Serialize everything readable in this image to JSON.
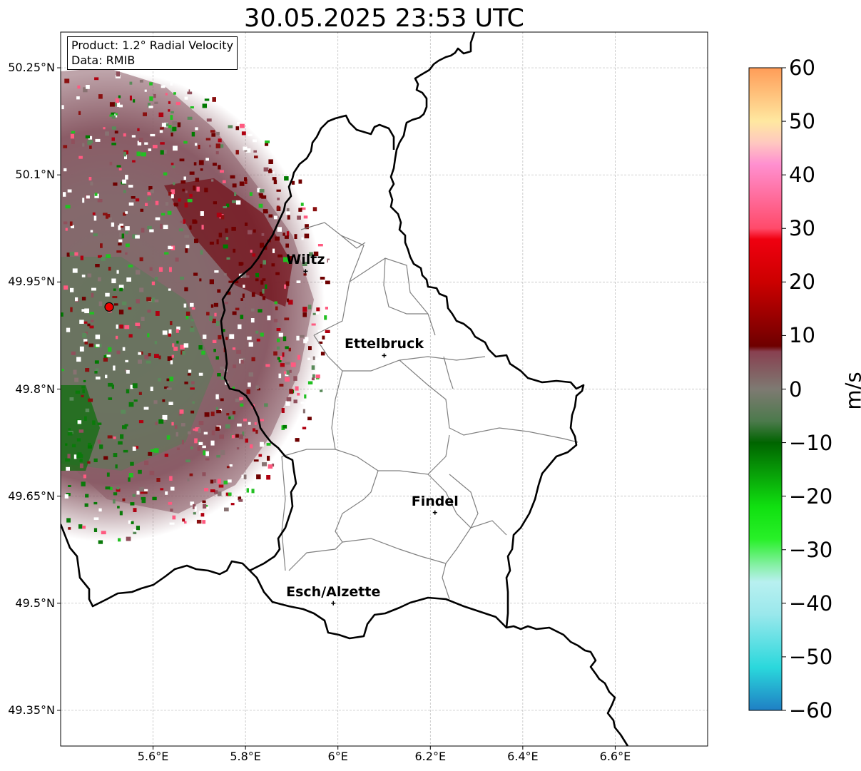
{
  "title": "30.05.2025 23:53 UTC",
  "info": {
    "product": "Product: 1.2° Radial Velocity",
    "data_source": "Data: RMIB"
  },
  "axes": {
    "lat_ticks": [
      "50.25°N",
      "50.1°N",
      "49.95°N",
      "49.8°N",
      "49.65°N",
      "49.5°N",
      "49.35°N"
    ],
    "lon_ticks": [
      "5.6°E",
      "5.8°E",
      "6°E",
      "6.2°E",
      "6.4°E",
      "6.6°E"
    ],
    "lat_range": [
      49.3,
      50.3
    ],
    "lon_range": [
      5.4,
      6.8
    ],
    "grid": true
  },
  "cities": [
    {
      "name": "Wiltz",
      "lon": 5.93,
      "lat": 49.965
    },
    {
      "name": "Ettelbruck",
      "lon": 6.1,
      "lat": 49.847
    },
    {
      "name": "Findel",
      "lon": 6.21,
      "lat": 49.627
    },
    {
      "name": "Esch/Alzette",
      "lon": 5.99,
      "lat": 49.5
    }
  ],
  "radar_site": {
    "lon": 5.505,
    "lat": 49.915
  },
  "colorbar": {
    "label": "m/s",
    "min": -60,
    "max": 60,
    "ticks": [
      "60",
      "50",
      "40",
      "30",
      "20",
      "10",
      "0",
      "−10",
      "−20",
      "−30",
      "−40",
      "−50",
      "−60"
    ],
    "stops": [
      {
        "v": -60,
        "c": "#1f7fc4"
      },
      {
        "v": -52,
        "c": "#2ad8dc"
      },
      {
        "v": -42,
        "c": "#9ae8ec"
      },
      {
        "v": -36,
        "c": "#b8f0f0"
      },
      {
        "v": -33,
        "c": "#88f0a8"
      },
      {
        "v": -28,
        "c": "#28f028"
      },
      {
        "v": -22,
        "c": "#10e010"
      },
      {
        "v": -10,
        "c": "#006400"
      },
      {
        "v": -6,
        "c": "#4c7a4c"
      },
      {
        "v": 0,
        "c": "#7e7a72"
      },
      {
        "v": 7,
        "c": "#884050"
      },
      {
        "v": 8,
        "c": "#6e0000"
      },
      {
        "v": 20,
        "c": "#cc0000"
      },
      {
        "v": 28,
        "c": "#f00010"
      },
      {
        "v": 30,
        "c": "#ff4a6a"
      },
      {
        "v": 42,
        "c": "#ff90d0"
      },
      {
        "v": 46,
        "c": "#ffc8c0"
      },
      {
        "v": 50,
        "c": "#ffe8a0"
      },
      {
        "v": 60,
        "c": "#ff9c58"
      }
    ]
  },
  "colors": {
    "national_border": "#000000",
    "canton_border": "#808080",
    "gridline": "#b8b8b8"
  }
}
